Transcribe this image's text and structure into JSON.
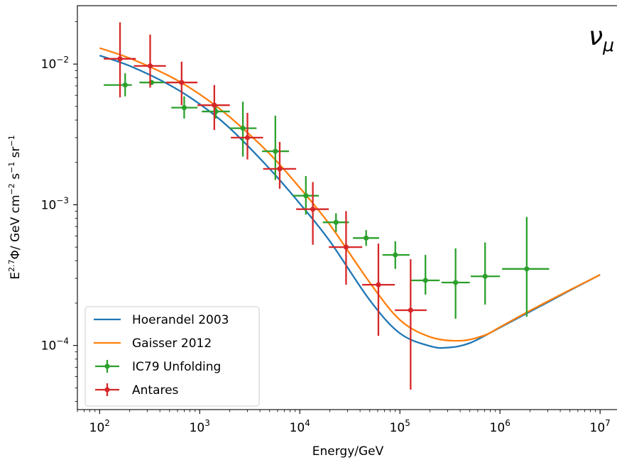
{
  "chart_data": {
    "type": "line",
    "title": "",
    "annotation": "νμ",
    "annotation_base": "ν",
    "annotation_sub": "μ",
    "xlabel": "Energy/GeV",
    "ylabel": "E2.7Φ/ GeV cm−2 s−1 sr−1",
    "ylabel_parts": {
      "base1": "E",
      "exp1": "2.7",
      "mid": "Φ/ GeV cm",
      "exp2": "−2",
      "s": " s",
      "exp3": "−1",
      "sr": " sr",
      "exp4": "−1"
    },
    "xscale": "log",
    "yscale": "log",
    "xlim": [
      60,
      15000000
    ],
    "ylim": [
      3.5e-05,
      0.026
    ],
    "x_ticks": [
      {
        "value": 100,
        "base": "10",
        "exp": "2"
      },
      {
        "value": 1000,
        "base": "10",
        "exp": "3"
      },
      {
        "value": 10000,
        "base": "10",
        "exp": "4"
      },
      {
        "value": 100000,
        "base": "10",
        "exp": "5"
      },
      {
        "value": 1000000,
        "base": "10",
        "exp": "6"
      },
      {
        "value": 10000000,
        "base": "10",
        "exp": "7"
      }
    ],
    "y_ticks": [
      {
        "value": 0.0001,
        "base": "10",
        "exp": "−4"
      },
      {
        "value": 0.001,
        "base": "10",
        "exp": "−3"
      },
      {
        "value": 0.01,
        "base": "10",
        "exp": "−2"
      }
    ],
    "legend_position": "bottom-left",
    "series": [
      {
        "name": "Hoerandel 2003",
        "kind": "line",
        "color": "#1f77b4",
        "x": [
          100,
          200,
          500,
          1000,
          2000,
          5000,
          10000,
          20000,
          50000,
          100000,
          200000,
          300000,
          500000,
          1000000,
          2000000,
          5000000,
          10000000
        ],
        "y": [
          0.0115,
          0.0097,
          0.0071,
          0.0052,
          0.0035,
          0.0018,
          0.00102,
          0.00055,
          0.00021,
          0.000122,
          9.9e-05,
          9.65e-05,
          0.000104,
          0.000134,
          0.000174,
          0.000246,
          0.000318
        ]
      },
      {
        "name": "Gaisser 2012",
        "kind": "line",
        "color": "#ff7f0e",
        "x": [
          100,
          200,
          500,
          1000,
          2000,
          5000,
          10000,
          20000,
          50000,
          100000,
          200000,
          400000,
          700000,
          1000000,
          2000000,
          5000000,
          10000000
        ],
        "y": [
          0.013,
          0.011,
          0.0082,
          0.0061,
          0.0042,
          0.0023,
          0.00132,
          0.00072,
          0.00028,
          0.000152,
          0.000115,
          0.000108,
          0.000118,
          0.000135,
          0.000177,
          0.000248,
          0.000318
        ]
      },
      {
        "name": "IC79 Unfolding",
        "kind": "errorbar",
        "color": "#2ca02c",
        "points": [
          {
            "x": 180,
            "y": 0.0071,
            "xlo": 110,
            "xhi": 210,
            "ylo": 0.0059,
            "yhi": 0.0086
          },
          {
            "x": 330,
            "y": 0.0074,
            "xlo": 250,
            "xhi": 440,
            "ylo": 0.0071,
            "yhi": 0.0077
          },
          {
            "x": 700,
            "y": 0.0049,
            "xlo": 520,
            "xhi": 950,
            "ylo": 0.0041,
            "yhi": 0.0059
          },
          {
            "x": 1450,
            "y": 0.0046,
            "xlo": 1050,
            "xhi": 2000,
            "ylo": 0.0041,
            "yhi": 0.0052
          },
          {
            "x": 2700,
            "y": 0.0035,
            "xlo": 2000,
            "xhi": 3700,
            "ylo": 0.0022,
            "yhi": 0.0054
          },
          {
            "x": 5700,
            "y": 0.0024,
            "xlo": 4200,
            "xhi": 7800,
            "ylo": 0.0015,
            "yhi": 0.0043
          },
          {
            "x": 11500,
            "y": 0.00116,
            "xlo": 8500,
            "xhi": 15500,
            "ylo": 0.00085,
            "yhi": 0.0016
          },
          {
            "x": 23000,
            "y": 0.00075,
            "xlo": 17000,
            "xhi": 31000,
            "ylo": 0.00064,
            "yhi": 0.00087
          },
          {
            "x": 46000,
            "y": 0.00058,
            "xlo": 34000,
            "xhi": 62000,
            "ylo": 0.00051,
            "yhi": 0.00066
          },
          {
            "x": 90000,
            "y": 0.00044,
            "xlo": 67000,
            "xhi": 125000,
            "ylo": 0.00035,
            "yhi": 0.00055
          },
          {
            "x": 180000,
            "y": 0.00029,
            "xlo": 130000,
            "xhi": 250000,
            "ylo": 0.00023,
            "yhi": 0.00044
          },
          {
            "x": 360000,
            "y": 0.00028,
            "xlo": 260000,
            "xhi": 500000,
            "ylo": 0.000155,
            "yhi": 0.00049
          },
          {
            "x": 710000,
            "y": 0.00031,
            "xlo": 510000,
            "xhi": 1000000,
            "ylo": 0.000195,
            "yhi": 0.00054
          },
          {
            "x": 1850000,
            "y": 0.00035,
            "xlo": 1050000,
            "xhi": 3100000,
            "ylo": 0.00016,
            "yhi": 0.00082
          }
        ]
      },
      {
        "name": "Antares",
        "kind": "errorbar",
        "color": "#d62728",
        "points": [
          {
            "x": 160,
            "y": 0.0109,
            "xlo": 110,
            "xhi": 230,
            "ylo": 0.0058,
            "yhi": 0.0198
          },
          {
            "x": 320,
            "y": 0.0097,
            "xlo": 220,
            "xhi": 460,
            "ylo": 0.0068,
            "yhi": 0.0162
          },
          {
            "x": 660,
            "y": 0.0074,
            "xlo": 460,
            "xhi": 950,
            "ylo": 0.0051,
            "yhi": 0.0104
          },
          {
            "x": 1400,
            "y": 0.0051,
            "xlo": 950,
            "xhi": 2000,
            "ylo": 0.0034,
            "yhi": 0.0071
          },
          {
            "x": 3000,
            "y": 0.003,
            "xlo": 2050,
            "xhi": 4300,
            "ylo": 0.0021,
            "yhi": 0.0045
          },
          {
            "x": 6300,
            "y": 0.0018,
            "xlo": 4300,
            "xhi": 9200,
            "ylo": 0.0013,
            "yhi": 0.0028
          },
          {
            "x": 13500,
            "y": 0.00093,
            "xlo": 9200,
            "xhi": 19500,
            "ylo": 0.00052,
            "yhi": 0.00145
          },
          {
            "x": 29000,
            "y": 0.0005,
            "xlo": 19500,
            "xhi": 42000,
            "ylo": 0.00027,
            "yhi": 0.0009
          },
          {
            "x": 61000,
            "y": 0.00027,
            "xlo": 42000,
            "xhi": 89000,
            "ylo": 0.000117,
            "yhi": 0.00053
          },
          {
            "x": 128000,
            "y": 0.000178,
            "xlo": 89000,
            "xhi": 185000,
            "ylo": 4.85e-05,
            "yhi": 0.00041
          }
        ]
      }
    ]
  }
}
